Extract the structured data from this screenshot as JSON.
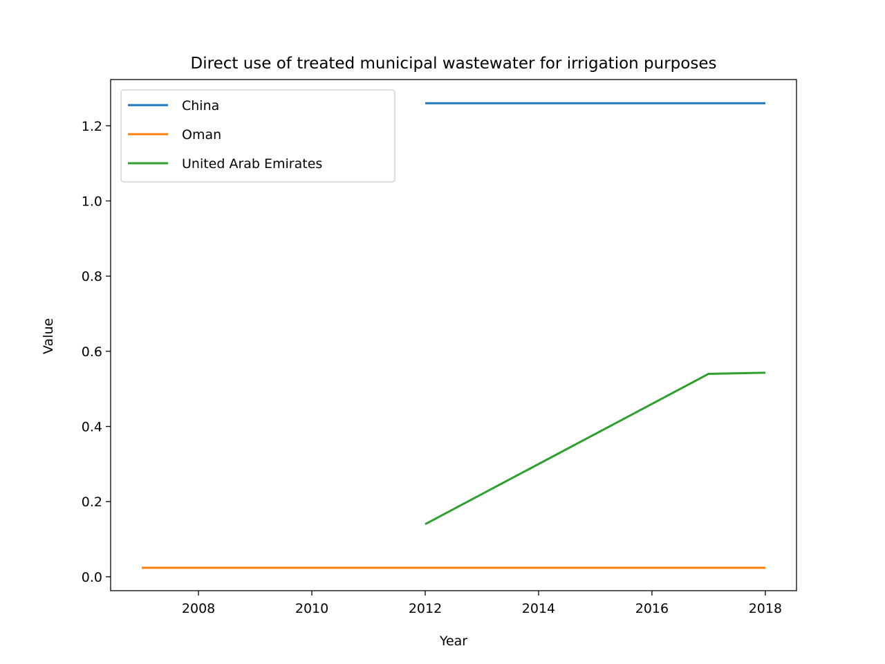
{
  "chart_data": {
    "type": "line",
    "title": "Direct use of treated municipal wastewater for irrigation purposes",
    "xlabel": "Year",
    "ylabel": "Value",
    "xlim": [
      2006.45,
      2018.55
    ],
    "ylim": [
      -0.037,
      1.323
    ],
    "xticks": [
      2008,
      2010,
      2012,
      2014,
      2016,
      2018
    ],
    "yticks": [
      0.0,
      0.2,
      0.4,
      0.6,
      0.8,
      1.0,
      1.2
    ],
    "grid": false,
    "legend_position": "upper-left",
    "series": [
      {
        "name": "China",
        "color": "#1f77b4",
        "points": [
          [
            2012,
            1.26
          ],
          [
            2018,
            1.26
          ]
        ]
      },
      {
        "name": "Oman",
        "color": "#ff7f0e",
        "points": [
          [
            2007,
            0.024
          ],
          [
            2018,
            0.024
          ]
        ]
      },
      {
        "name": "United Arab Emirates",
        "color": "#2ca02c",
        "points": [
          [
            2012,
            0.14
          ],
          [
            2017,
            0.54
          ],
          [
            2018,
            0.543
          ]
        ]
      }
    ]
  }
}
